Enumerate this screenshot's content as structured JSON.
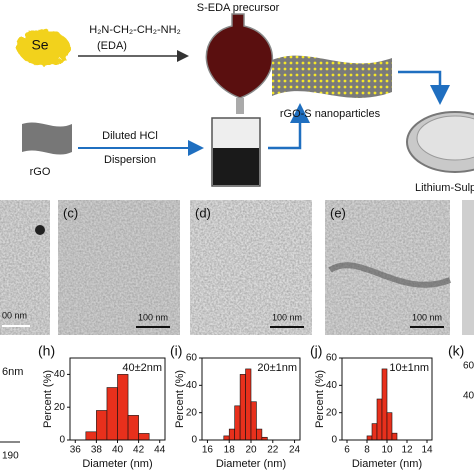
{
  "schematic": {
    "se": "Se",
    "formula": "H₂N-CH₂-CH₂-NH₂",
    "eda": "(EDA)",
    "precursor": "S-EDA precursor",
    "rgo": "rGO",
    "hcl": "Diluted HCl",
    "dispersion": "Dispersion",
    "rgo_s": "rGO-S nanoparticles",
    "battery": "Lithium-Sulphu"
  },
  "tem_panels": [
    {
      "scale": "00 nm"
    },
    {
      "label": "(c)",
      "scale": "100 nm"
    },
    {
      "label": "(d)",
      "scale": "100 nm"
    },
    {
      "label": "(e)",
      "scale": "100 nm"
    }
  ],
  "partial_histograms": {
    "left": [
      "6nm",
      "190"
    ],
    "right": {
      "label": "(k)",
      "ticks": [
        "60",
        "40"
      ]
    }
  },
  "chart_data": [
    {
      "type": "histogram",
      "panel": "(h)",
      "annotation": "40±2nm",
      "ylabel": "Percent (%)",
      "xlabel": "Diameter (nm)",
      "bins": [
        37,
        38,
        39,
        40,
        41,
        42,
        43
      ],
      "values": [
        5,
        18,
        32,
        40,
        15,
        4
      ],
      "color": "#e8301c",
      "xlim": [
        35.5,
        44.5
      ],
      "xticks": [
        36,
        38,
        40,
        42,
        44
      ],
      "ylim": [
        0,
        50
      ],
      "yticks": [
        0,
        20,
        40
      ]
    },
    {
      "type": "histogram",
      "panel": "(i)",
      "annotation": "20±1nm",
      "ylabel": "Percent (%)",
      "xlabel": "Diameter (nm)",
      "bins": [
        17.5,
        18,
        18.5,
        19,
        19.5,
        20,
        20.5,
        21,
        21.5
      ],
      "values": [
        3,
        8,
        25,
        48,
        52,
        28,
        8,
        2
      ],
      "color": "#e8301c",
      "xlim": [
        15.5,
        24.5
      ],
      "xticks": [
        16,
        18,
        20,
        22,
        24
      ],
      "ylim": [
        0,
        60
      ],
      "yticks": [
        0,
        20,
        40,
        60
      ]
    },
    {
      "type": "histogram",
      "panel": "(j)",
      "annotation": "10±1nm",
      "ylabel": "Percent (%)",
      "xlabel": "Diameter (nm)",
      "bins": [
        8,
        8.5,
        9,
        9.5,
        10,
        10.5,
        11
      ],
      "values": [
        3,
        12,
        30,
        52,
        20,
        5
      ],
      "color": "#e8301c",
      "xlim": [
        5.5,
        14.5
      ],
      "xticks": [
        6,
        8,
        10,
        12,
        14
      ],
      "ylim": [
        0,
        60
      ],
      "yticks": [
        0,
        20,
        40,
        60
      ]
    }
  ]
}
